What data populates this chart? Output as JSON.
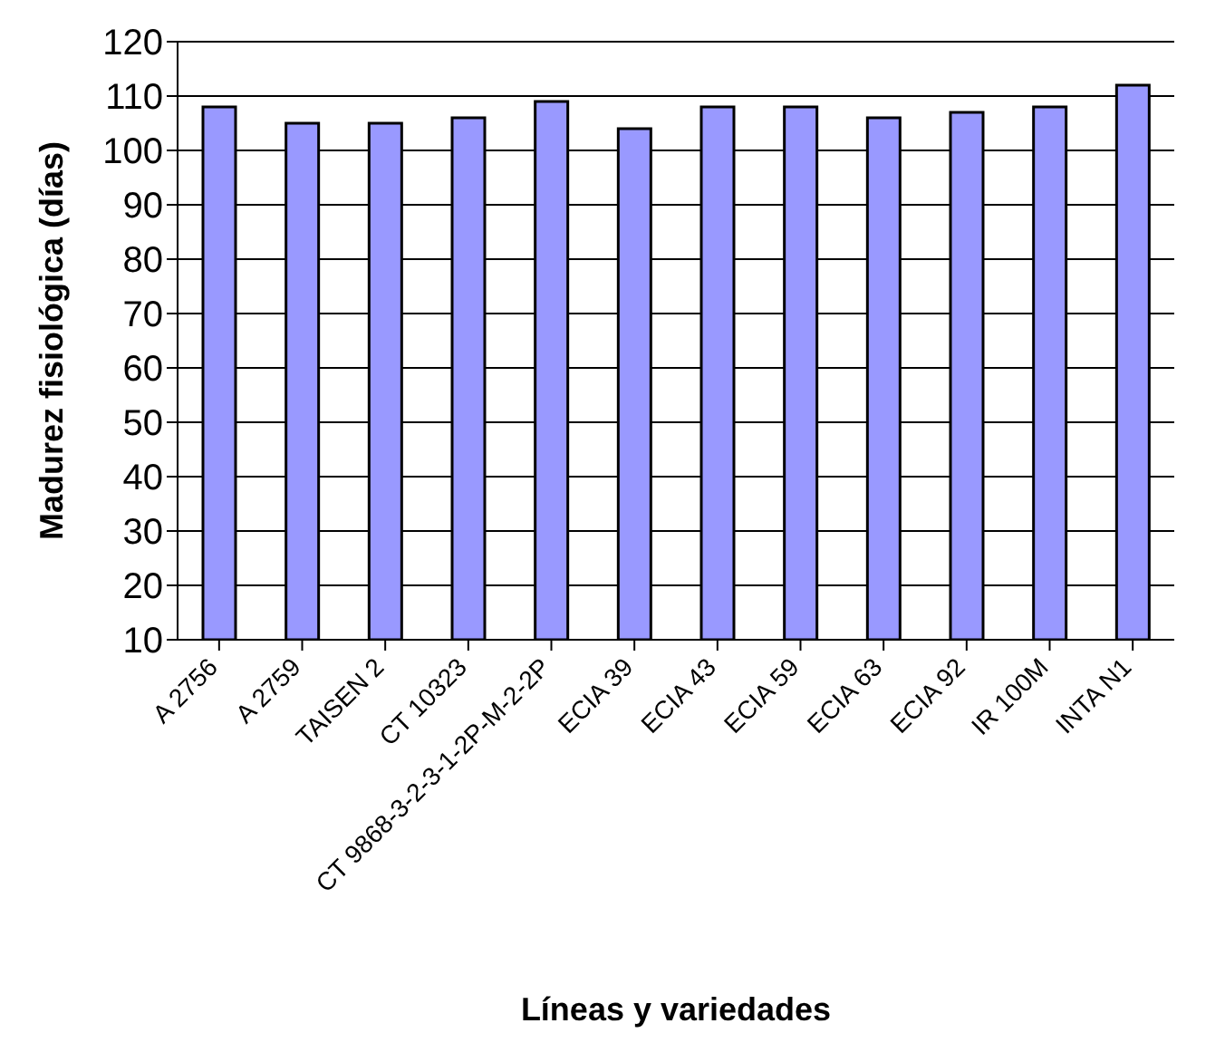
{
  "chart_data": {
    "type": "bar",
    "xlabel": "Líneas y variedades",
    "ylabel": "Madurez fisiológica (días)",
    "categories": [
      "A 2756",
      "A 2759",
      "TAISEN 2",
      "CT 10323",
      "CT 9868-3-2-3-1-2P-M-2-2P",
      "ECIA 39",
      "ECIA 43",
      "ECIA 59",
      "ECIA 63",
      "ECIA 92",
      "IR 100M",
      "INTA N1"
    ],
    "values": [
      108,
      105,
      105,
      106,
      109,
      104,
      108,
      108,
      106,
      107,
      108,
      112
    ],
    "color": "#9999ff",
    "ylim": [
      10,
      120
    ],
    "yticks": [
      10,
      20,
      30,
      40,
      50,
      60,
      70,
      80,
      90,
      100,
      110,
      120
    ],
    "grid": "y"
  }
}
